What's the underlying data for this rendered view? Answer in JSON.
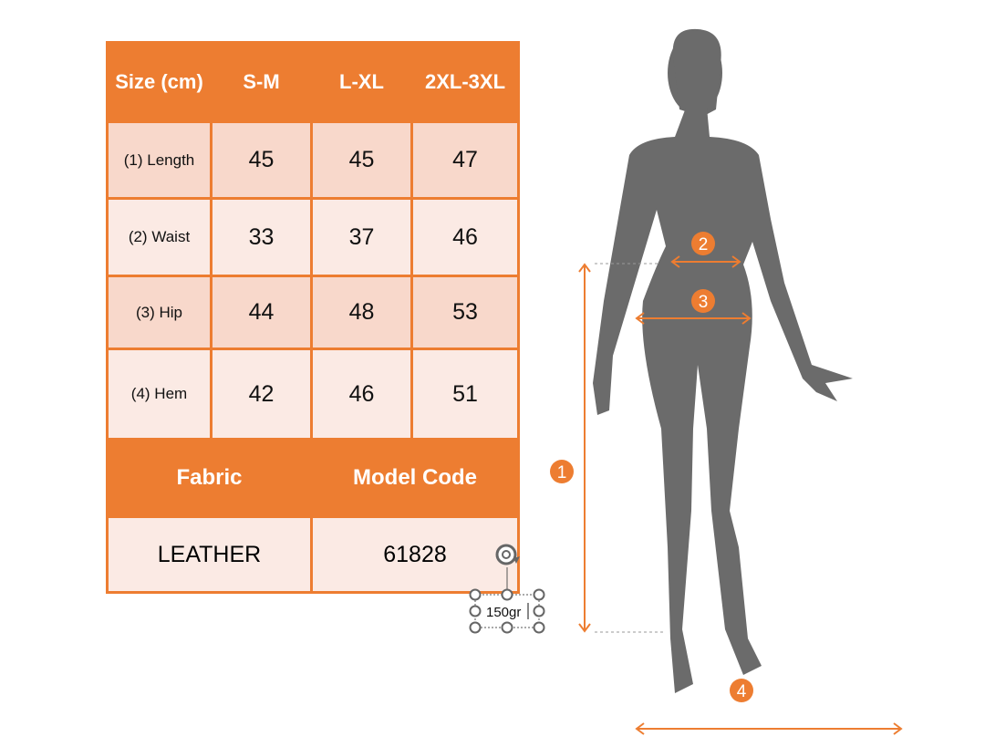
{
  "table": {
    "header": [
      "Size (cm)",
      "S-M",
      "L-XL",
      "2XL-3XL"
    ],
    "rows": [
      {
        "label": "(1) Length",
        "values": [
          "45",
          "45",
          "47"
        ]
      },
      {
        "label": "(2) Waist",
        "values": [
          "33",
          "37",
          "46"
        ]
      },
      {
        "label": "(3) Hip",
        "values": [
          "44",
          "48",
          "53"
        ]
      },
      {
        "label": "(4) Hem",
        "values": [
          "42",
          "46",
          "51"
        ]
      }
    ],
    "footer_header": [
      "Fabric",
      "Model Code"
    ],
    "footer_values": [
      "LEATHER",
      "61828"
    ]
  },
  "textbox": {
    "value": "150gr"
  },
  "markers": [
    "1",
    "2",
    "3",
    "4"
  ],
  "colors": {
    "accent": "#ED7D31",
    "row_dark": "#F8D8CB",
    "row_light": "#FBEAE4",
    "silhouette": "#6b6b6b"
  }
}
